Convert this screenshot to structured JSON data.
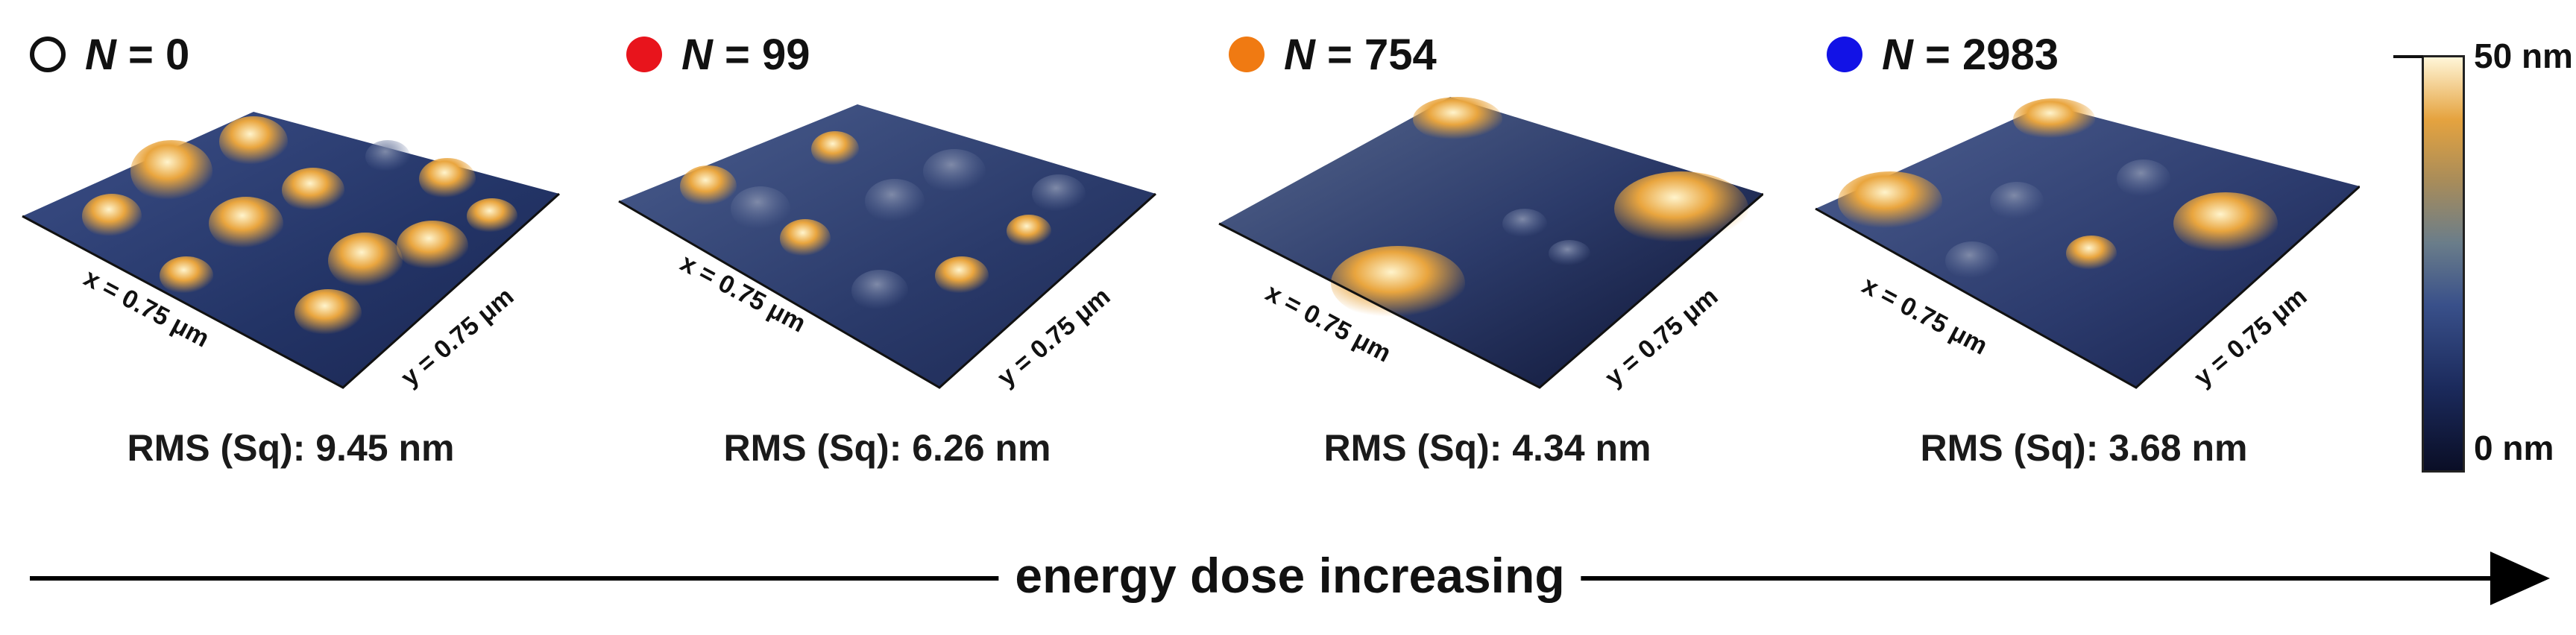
{
  "panels": [
    {
      "n_label": "N",
      "n_value": "= 0",
      "marker": "open-circle",
      "marker_color": "#ffffff",
      "x_label": "x = 0.75 μm",
      "y_label": "y = 0.75 μm",
      "rms": "RMS (Sq): 9.45 nm"
    },
    {
      "n_label": "N",
      "n_value": "= 99",
      "marker": "filled-circle",
      "marker_color": "#e8141c",
      "x_label": "x = 0.75 μm",
      "y_label": "y = 0.75 μm",
      "rms": "RMS (Sq): 6.26 nm"
    },
    {
      "n_label": "N",
      "n_value": "= 754",
      "marker": "filled-circle",
      "marker_color": "#f07a12",
      "x_label": "x = 0.75 μm",
      "y_label": "y = 0.75 μm",
      "rms": "RMS (Sq): 4.34 nm"
    },
    {
      "n_label": "N",
      "n_value": "= 2983",
      "marker": "filled-circle",
      "marker_color": "#1212e6",
      "x_label": "x = 0.75 μm",
      "y_label": "y = 0.75 μm",
      "rms": "RMS (Sq): 3.68 nm"
    }
  ],
  "colorbar": {
    "max_label": "50 nm",
    "min_label": "0 nm"
  },
  "arrow": {
    "label": "energy dose increasing"
  }
}
